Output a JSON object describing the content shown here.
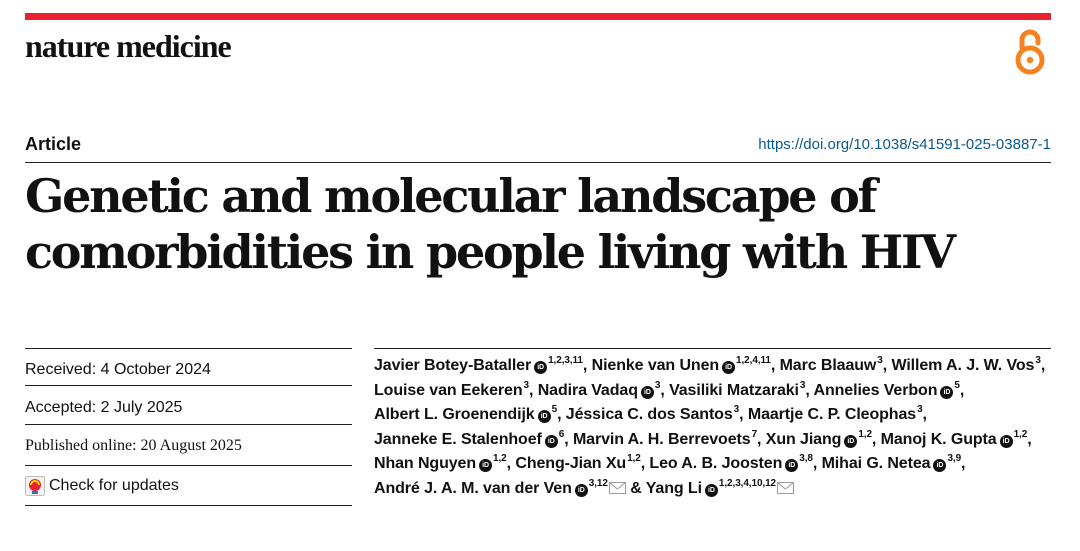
{
  "journal": {
    "name": "nature medicine",
    "open_access_icon": "open-access-icon",
    "brand_color": "#e8202f",
    "oa_color": "#f58220"
  },
  "article": {
    "type": "Article",
    "doi": "https://doi.org/10.1038/s41591-025-03887-1",
    "title": "Genetic and molecular landscape of comorbidities in people living with HIV"
  },
  "dates": {
    "received": "Received: 4 October 2024",
    "accepted": "Accepted: 2 July 2025",
    "published": "Published online: 20 August 2025"
  },
  "check_updates": "Check for updates",
  "authors": [
    {
      "name": "Javier Botey-Bataller",
      "orcid": true,
      "aff": "1,2,3,11",
      "sep": ","
    },
    {
      "name": "Nienke van Unen",
      "orcid": true,
      "aff": "1,2,4,11",
      "sep": ","
    },
    {
      "name": "Marc Blaauw",
      "orcid": false,
      "aff": "3",
      "sep": ","
    },
    {
      "name": "Willem A. J. W. Vos",
      "orcid": false,
      "aff": "3",
      "sep": ","
    },
    {
      "name": "Louise van Eekeren",
      "orcid": false,
      "aff": "3",
      "sep": ","
    },
    {
      "name": "Nadira Vadaq",
      "orcid": true,
      "aff": "3",
      "sep": ","
    },
    {
      "name": "Vasiliki Matzaraki",
      "orcid": false,
      "aff": "3",
      "sep": ","
    },
    {
      "name": "Annelies Verbon",
      "orcid": true,
      "aff": "5",
      "sep": ","
    },
    {
      "name": "Albert L. Groenendijk",
      "orcid": true,
      "aff": "5",
      "sep": ","
    },
    {
      "name": "Jéssica C. dos Santos",
      "orcid": false,
      "aff": "3",
      "sep": ","
    },
    {
      "name": "Maartje C. P. Cleophas",
      "orcid": false,
      "aff": "3",
      "sep": ","
    },
    {
      "name": "Janneke E. Stalenhoef",
      "orcid": true,
      "aff": "6",
      "sep": ","
    },
    {
      "name": "Marvin A. H. Berrevoets",
      "orcid": false,
      "aff": "7",
      "sep": ","
    },
    {
      "name": "Xun Jiang",
      "orcid": true,
      "aff": "1,2",
      "sep": ","
    },
    {
      "name": "Manoj K. Gupta",
      "orcid": true,
      "aff": "1,2",
      "sep": ","
    },
    {
      "name": "Nhan Nguyen",
      "orcid": true,
      "aff": "1,2",
      "sep": ","
    },
    {
      "name": "Cheng-Jian Xu",
      "orcid": false,
      "aff": "1,2",
      "sep": ","
    },
    {
      "name": "Leo A. B. Joosten",
      "orcid": true,
      "aff": "3,8",
      "sep": ","
    },
    {
      "name": "Mihai G. Netea",
      "orcid": true,
      "aff": "3,9",
      "sep": ","
    },
    {
      "name": "André J. A. M. van der Ven",
      "orcid": true,
      "aff": "3,12",
      "mail": true,
      "sep": " &"
    },
    {
      "name": "Yang Li",
      "orcid": true,
      "aff": "1,2,3,4,10,12",
      "mail": true,
      "sep": ""
    }
  ]
}
